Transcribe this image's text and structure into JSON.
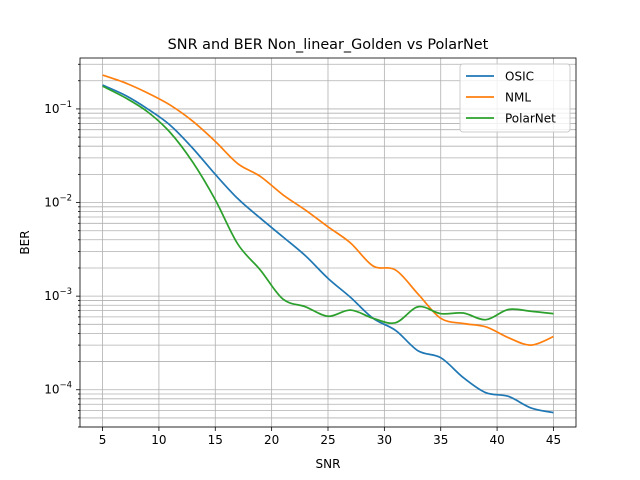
{
  "chart_data": {
    "type": "line",
    "title": "SNR and BER Non_linear_Golden vs PolarNet",
    "xlabel": "SNR",
    "ylabel": "BER",
    "x_scale": "linear",
    "y_scale": "log",
    "xlim": [
      3.0,
      47.0
    ],
    "ylim": [
      4e-05,
      0.35
    ],
    "x_ticks": [
      5,
      10,
      15,
      20,
      25,
      30,
      35,
      40,
      45
    ],
    "x_tick_labels": [
      "5",
      "10",
      "15",
      "20",
      "25",
      "30",
      "35",
      "40",
      "45"
    ],
    "y_ticks": [
      0.0001,
      0.001,
      0.01,
      0.1
    ],
    "y_tick_labels": [
      {
        "base": "10",
        "exp": "−4"
      },
      {
        "base": "10",
        "exp": "−3"
      },
      {
        "base": "10",
        "exp": "−2"
      },
      {
        "base": "10",
        "exp": "−1"
      }
    ],
    "grid": true,
    "grid_minor_y": true,
    "legend_position": "top-right",
    "x": [
      5,
      7,
      9,
      11,
      13,
      15,
      17,
      19,
      21,
      23,
      25,
      27,
      29,
      31,
      33,
      35,
      37,
      39,
      41,
      43,
      45
    ],
    "series": [
      {
        "name": "OSIC",
        "color": "#1f77b4",
        "values": [
          0.18,
          0.14,
          0.1,
          0.067,
          0.038,
          0.02,
          0.011,
          0.0068,
          0.0043,
          0.0027,
          0.00155,
          0.00097,
          0.00058,
          0.00043,
          0.00026,
          0.00022,
          0.000135,
          9.3e-05,
          8.5e-05,
          6.4e-05,
          5.7e-05
        ]
      },
      {
        "name": "NML",
        "color": "#ff7f0e",
        "values": [
          0.23,
          0.19,
          0.148,
          0.11,
          0.074,
          0.045,
          0.026,
          0.019,
          0.0121,
          0.0083,
          0.0055,
          0.0037,
          0.0021,
          0.0019,
          0.00105,
          0.00058,
          0.00051,
          0.00047,
          0.00036,
          0.0003,
          0.00037
        ]
      },
      {
        "name": "PolarNet",
        "color": "#2ca02c",
        "values": [
          0.175,
          0.132,
          0.093,
          0.056,
          0.027,
          0.0107,
          0.0036,
          0.0019,
          0.00093,
          0.00077,
          0.00061,
          0.00071,
          0.00058,
          0.00052,
          0.00077,
          0.00065,
          0.00066,
          0.00056,
          0.00072,
          0.00069,
          0.00065
        ]
      }
    ]
  }
}
